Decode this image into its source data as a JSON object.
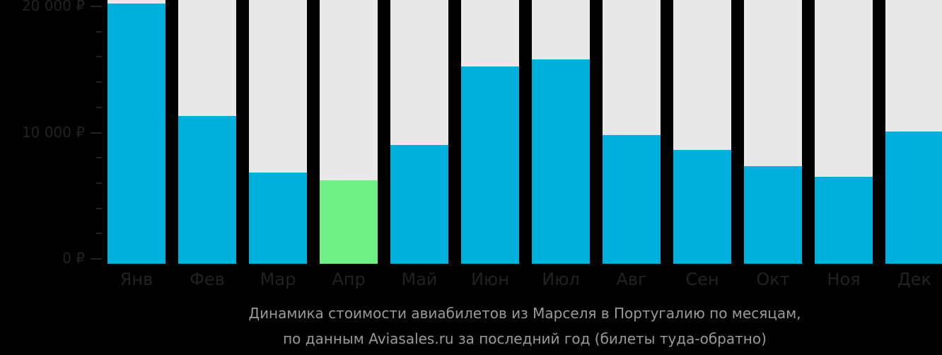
{
  "chart_data": {
    "type": "bar",
    "title": "Динамика стоимости авиабилетов из Марселя в Португалию по месяцам, по данным Aviasales.ru за последний год (билеты туда-обратно)",
    "caption_lines": [
      "Динамика стоимости авиабилетов из Марселя в Португалию по месяцам,",
      "по данным Aviasales.ru за последний год (билеты туда-обратно)"
    ],
    "xlabel": "",
    "ylabel": "",
    "categories": [
      "Янв",
      "Фев",
      "Мар",
      "Апр",
      "Май",
      "Июн",
      "Июл",
      "Авг",
      "Сен",
      "Окт",
      "Ноя",
      "Дек"
    ],
    "values": [
      20200,
      11290,
      6850,
      6240,
      9040,
      15220,
      15790,
      9780,
      8650,
      7360,
      6520,
      10060
    ],
    "highlight_index": 3,
    "ylim": [
      0,
      20000
    ],
    "yticks": [
      {
        "value": 0,
        "label": "0 ₽"
      },
      {
        "value": 10000,
        "label": "10 000 ₽"
      },
      {
        "value": 20000,
        "label": "20 000 ₽"
      }
    ],
    "minor_ticks_per_major": 4,
    "grid": false,
    "legend": null,
    "colors": {
      "bar": "#00b0dc",
      "highlight": "#6ef085",
      "bar_background": "#e8e8e8",
      "axis_text": "#222222",
      "caption_text": "#9a9a9a",
      "page_background": "#000000"
    }
  }
}
